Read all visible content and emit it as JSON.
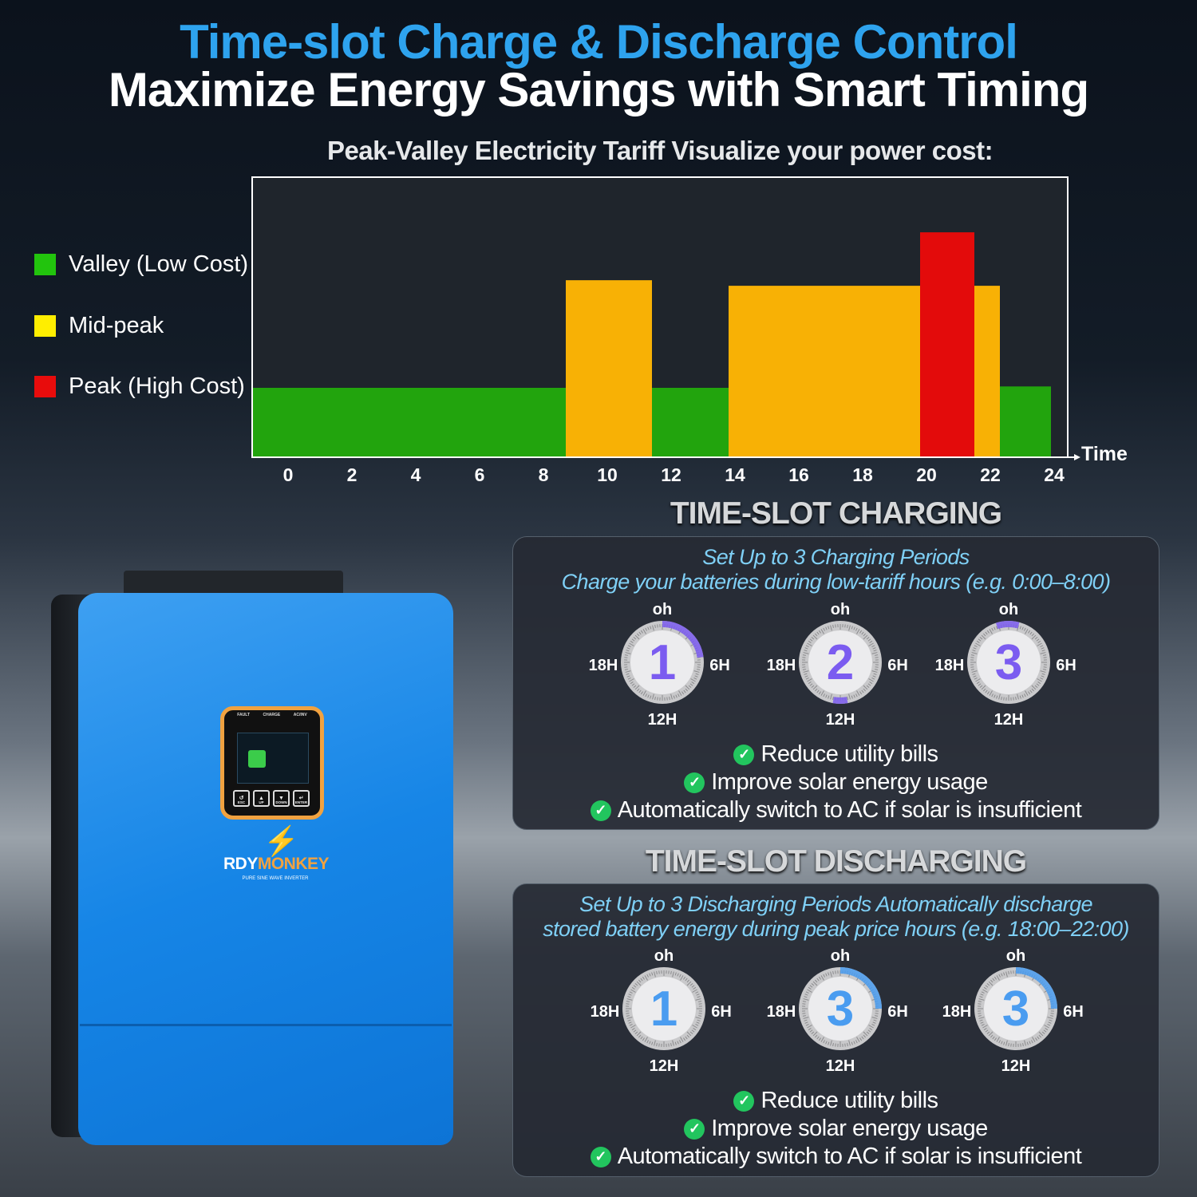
{
  "header": {
    "title": "Time-slot Charge & Discharge Control",
    "subtitle": "Maximize Energy Savings with Smart Timing"
  },
  "chart_data": {
    "type": "bar",
    "title": "Peak-Valley Electricity Tariff Visualize your power cost:",
    "xlabel": "Time",
    "ylabel": "",
    "xticks": [
      0,
      2,
      4,
      6,
      8,
      10,
      12,
      14,
      16,
      18,
      20,
      22,
      24
    ],
    "xlim": [
      0,
      24
    ],
    "legend": [
      {
        "name": "Valley (Low Cost)",
        "color": "#22b60d"
      },
      {
        "name": "Mid-peak",
        "color": "#ffee00"
      },
      {
        "name": "Peak (High Cost)",
        "color": "#e80c0c"
      }
    ],
    "legend_placement": "left",
    "segments": [
      {
        "start": 0,
        "end": 8.7,
        "tier": "Valley (Low Cost)",
        "level": 1,
        "color": "#22a40d"
      },
      {
        "start": 8.7,
        "end": 11.4,
        "tier": "Mid-peak",
        "level": 2.55,
        "color": "#f8b105"
      },
      {
        "start": 11.4,
        "end": 13.8,
        "tier": "Valley (Low Cost)",
        "level": 1,
        "color": "#22a40d"
      },
      {
        "start": 13.8,
        "end": 19.8,
        "tier": "Mid-peak",
        "level": 2.47,
        "color": "#f8b105"
      },
      {
        "start": 19.8,
        "end": 21.5,
        "tier": "Peak (High Cost)",
        "level": 3.24,
        "color": "#e30b0b"
      },
      {
        "start": 21.5,
        "end": 22.3,
        "tier": "Mid-peak",
        "level": 2.47,
        "color": "#f8b105"
      },
      {
        "start": 22.3,
        "end": 23.9,
        "tier": "Valley (Low Cost)",
        "level": 1.02,
        "color": "#22a40d"
      }
    ],
    "grid": false
  },
  "charging": {
    "heading": "TIME-SLOT CHARGING",
    "line1": "Set Up to 3 Charging Periods",
    "line2": "Charge your batteries during low-tariff hours (e.g. 0:00–8:00)",
    "color": "#7b5cf0",
    "clocks": [
      {
        "number": "1",
        "arc": [
          0,
          5.5
        ]
      },
      {
        "number": "2",
        "arc": [
          11.3,
          12.7
        ]
      },
      {
        "number": "3",
        "arc": [
          22.8,
          1
        ]
      }
    ],
    "bullets": [
      "Reduce utility bills",
      "Improve solar energy usage",
      "Automatically switch to AC if solar is insufficient"
    ]
  },
  "discharging": {
    "heading": "TIME-SLOT DISCHARGING",
    "line1": "Set Up to 3 Discharging Periods Automatically discharge",
    "line2": "stored battery energy during peak price hours (e.g. 18:00–22:00)",
    "color": "#4a9cf0",
    "clocks": [
      {
        "number": "1",
        "arc": null
      },
      {
        "number": "3",
        "arc": [
          0,
          6
        ]
      },
      {
        "number": "3",
        "arc": [
          0,
          6
        ]
      }
    ],
    "bullets": [
      "Reduce utility bills",
      "Improve solar energy usage",
      "Automatically switch to AC if solar is insufficient"
    ]
  },
  "clock_labels": {
    "top": "oh",
    "right": "6H",
    "bottom": "12H",
    "left": "18H"
  },
  "product": {
    "brand_a": "RDY",
    "brand_b": "MONKEY",
    "tagline": "PURE SINE WAVE INVERTER",
    "indicators": [
      "FAULT",
      "CHARGE",
      "AC/INV"
    ],
    "buttons": [
      "ESC",
      "UP",
      "DOWN",
      "ENTER"
    ]
  }
}
